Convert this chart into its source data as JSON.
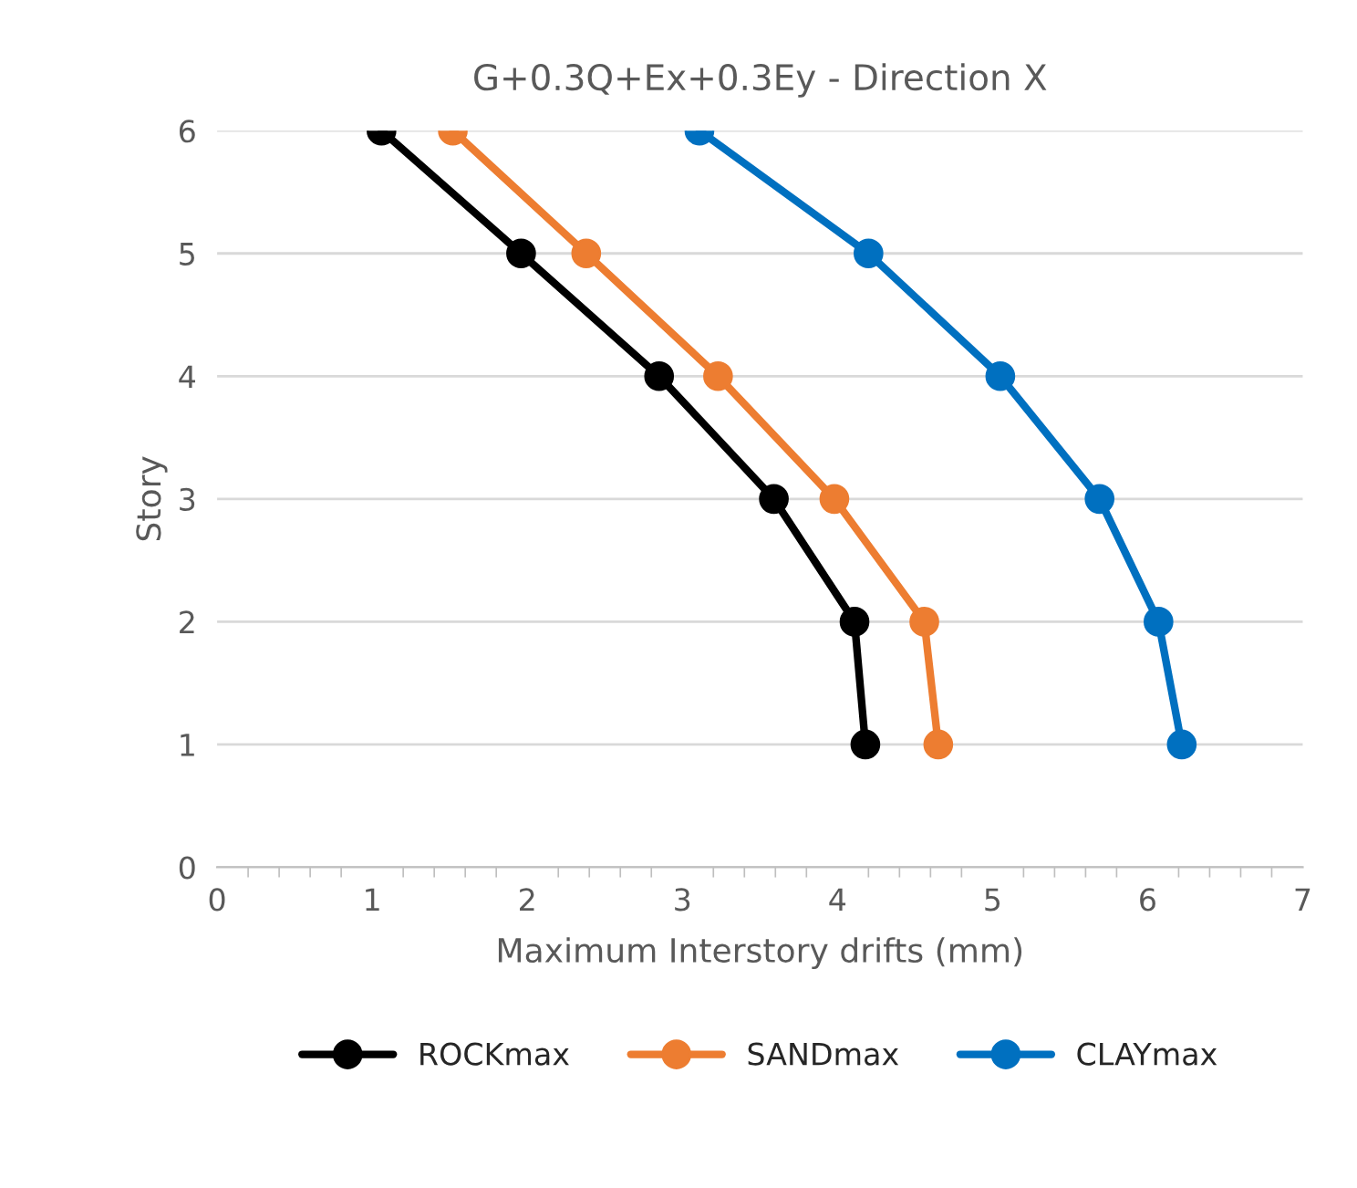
{
  "chart_data": {
    "type": "line",
    "title": "G+0.3Q+Ex+0.3Ey - Direction X",
    "xlabel": "Maximum Interstory drifts (mm)",
    "ylabel": "Story",
    "series": [
      {
        "name": "ROCKmax",
        "color": "#000000",
        "x": [
          1.06,
          1.96,
          2.85,
          3.59,
          4.11,
          4.18
        ],
        "values": [
          6,
          5,
          4,
          3,
          2,
          1
        ]
      },
      {
        "name": "SANDmax",
        "color": "#ed7d31",
        "x": [
          1.52,
          2.38,
          3.23,
          3.98,
          4.56,
          4.65
        ],
        "values": [
          6,
          5,
          4,
          3,
          2,
          1
        ]
      },
      {
        "name": "CLAYmax",
        "color": "#0070c0",
        "x": [
          3.11,
          4.2,
          5.05,
          5.69,
          6.07,
          6.22
        ],
        "values": [
          6,
          5,
          4,
          3,
          2,
          1
        ]
      }
    ],
    "xlim": [
      0,
      7
    ],
    "xticks": [
      0,
      1,
      2,
      3,
      4,
      5,
      6,
      7
    ],
    "ylim": [
      0,
      6
    ],
    "yticks": [
      0,
      1,
      2,
      3,
      4,
      5,
      6
    ],
    "grid": "y",
    "legend": "bottom",
    "marker": "circle",
    "line_style": "solid"
  }
}
